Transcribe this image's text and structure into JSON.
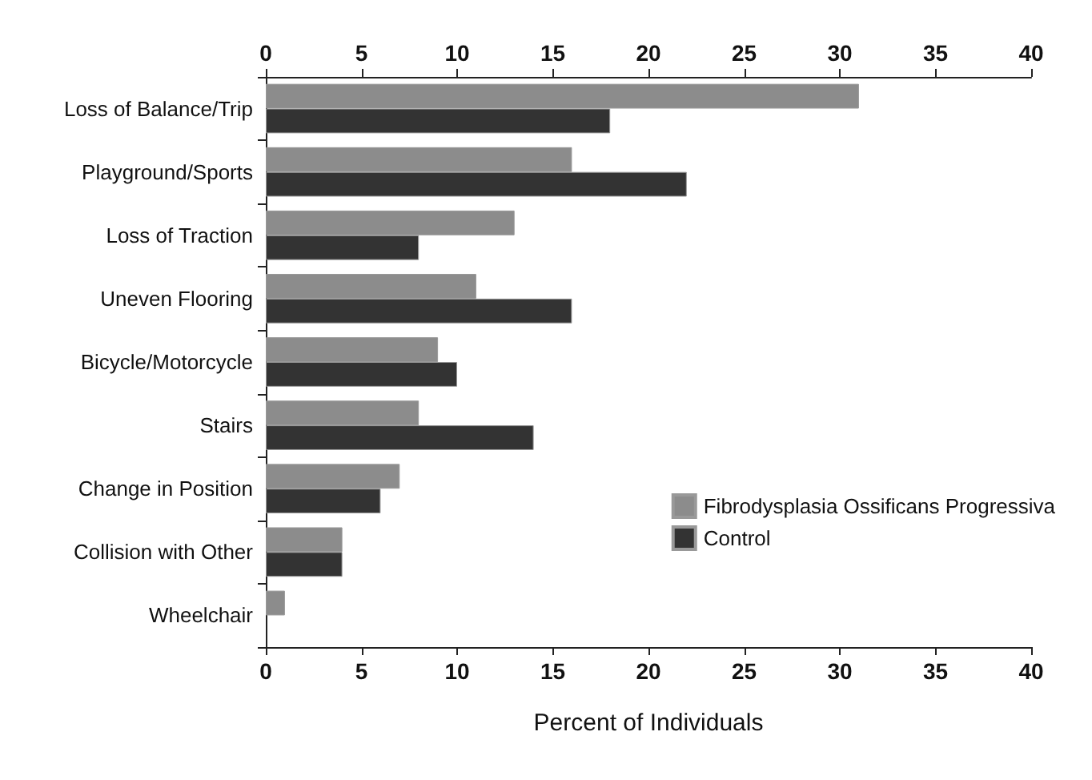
{
  "chart_data": {
    "type": "bar",
    "orientation": "horizontal",
    "xlabel": "Percent of Individuals",
    "categories": [
      "Loss of Balance/Trip",
      "Playground/Sports",
      "Loss of Traction",
      "Uneven Flooring",
      "Bicycle/Motorcycle",
      "Stairs",
      "Change in Position",
      "Collision with Other",
      "Wheelchair"
    ],
    "series": [
      {
        "name": "Fibrodysplasia Ossificans Progressiva",
        "color": "#8c8c8c",
        "values": [
          31,
          16,
          13,
          11,
          9,
          8,
          7,
          4,
          1
        ]
      },
      {
        "name": "Control",
        "color": "#333333",
        "values": [
          18,
          22,
          8,
          16,
          10,
          14,
          6,
          4,
          null
        ]
      }
    ],
    "xlim": [
      0,
      40
    ],
    "xticks": [
      0,
      5,
      10,
      15,
      20,
      25,
      30,
      35,
      40
    ],
    "x2lim": [
      0,
      40
    ],
    "x2ticks": [
      0,
      5,
      10,
      15,
      20,
      25,
      30,
      35,
      40
    ],
    "grid": false,
    "legend": "bottom right"
  }
}
